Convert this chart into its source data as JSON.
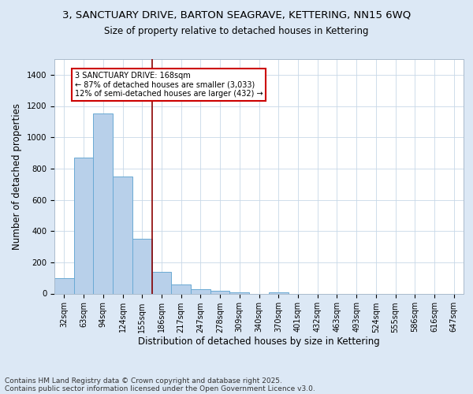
{
  "title_line1": "3, SANCTUARY DRIVE, BARTON SEAGRAVE, KETTERING, NN15 6WQ",
  "title_line2": "Size of property relative to detached houses in Kettering",
  "xlabel": "Distribution of detached houses by size in Kettering",
  "ylabel": "Number of detached properties",
  "categories": [
    "32sqm",
    "63sqm",
    "94sqm",
    "124sqm",
    "155sqm",
    "186sqm",
    "217sqm",
    "247sqm",
    "278sqm",
    "309sqm",
    "340sqm",
    "370sqm",
    "401sqm",
    "432sqm",
    "463sqm",
    "493sqm",
    "524sqm",
    "555sqm",
    "586sqm",
    "616sqm",
    "647sqm"
  ],
  "values": [
    100,
    870,
    1150,
    750,
    350,
    140,
    60,
    30,
    20,
    10,
    0,
    10,
    0,
    0,
    0,
    0,
    0,
    0,
    0,
    0,
    0
  ],
  "bar_color": "#b8d0ea",
  "bar_edge_color": "#6aaad4",
  "vline_x_index": 4.5,
  "vline_color": "#8b0000",
  "annotation_text": "3 SANCTUARY DRIVE: 168sqm\n← 87% of detached houses are smaller (3,033)\n12% of semi-detached houses are larger (432) →",
  "ylim": [
    0,
    1500
  ],
  "yticks": [
    0,
    200,
    400,
    600,
    800,
    1000,
    1200,
    1400
  ],
  "footer_line1": "Contains HM Land Registry data © Crown copyright and database right 2025.",
  "footer_line2": "Contains public sector information licensed under the Open Government Licence v3.0.",
  "background_color": "#dce8f5",
  "plot_bg_color": "#ffffff",
  "title_fontsize": 9.5,
  "subtitle_fontsize": 8.5,
  "tick_fontsize": 7,
  "label_fontsize": 8.5,
  "footer_fontsize": 6.5
}
